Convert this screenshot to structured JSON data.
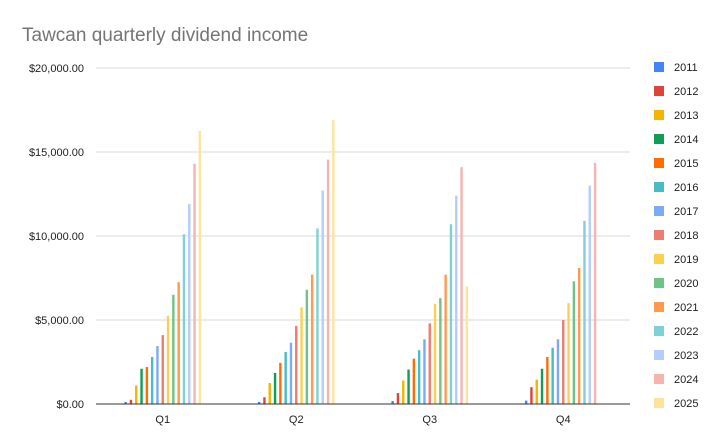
{
  "chart_data": {
    "type": "bar",
    "title": "Tawcan quarterly dividend income",
    "xlabel": "",
    "ylabel": "",
    "categories": [
      "Q1",
      "Q2",
      "Q3",
      "Q4"
    ],
    "ylim": [
      0,
      20000
    ],
    "yticks": [
      0,
      5000,
      10000,
      15000,
      20000
    ],
    "ytick_labels": [
      "$0.00",
      "$5,000.00",
      "$10,000.00",
      "$15,000.00",
      "$20,000.00"
    ],
    "grid": true,
    "legend_position": "right",
    "series": [
      {
        "name": "2011",
        "color": "#4285f4",
        "values": [
          120,
          120,
          180,
          200
        ]
      },
      {
        "name": "2012",
        "color": "#db4437",
        "values": [
          250,
          400,
          650,
          1000
        ]
      },
      {
        "name": "2013",
        "color": "#f4b400",
        "values": [
          1100,
          1250,
          1400,
          1450
        ]
      },
      {
        "name": "2014",
        "color": "#0f9d58",
        "values": [
          2100,
          1850,
          2050,
          2100
        ]
      },
      {
        "name": "2015",
        "color": "#ff6d00",
        "values": [
          2200,
          2450,
          2700,
          2800
        ]
      },
      {
        "name": "2016",
        "color": "#46bdc6",
        "values": [
          2800,
          3100,
          3200,
          3350
        ]
      },
      {
        "name": "2017",
        "color": "#7baaf7",
        "values": [
          3450,
          3650,
          3850,
          3850
        ]
      },
      {
        "name": "2018",
        "color": "#f07b72",
        "values": [
          4100,
          4650,
          4800,
          5000
        ]
      },
      {
        "name": "2019",
        "color": "#fcd04f",
        "values": [
          5250,
          5750,
          5950,
          6000
        ]
      },
      {
        "name": "2020",
        "color": "#71c287",
        "values": [
          6500,
          6800,
          6300,
          7300
        ]
      },
      {
        "name": "2021",
        "color": "#ff994d",
        "values": [
          7250,
          7700,
          7700,
          8100
        ]
      },
      {
        "name": "2022",
        "color": "#7ed1d7",
        "values": [
          10100,
          10450,
          10700,
          10900
        ]
      },
      {
        "name": "2023",
        "color": "#b3cefb",
        "values": [
          11900,
          12700,
          12400,
          13000
        ]
      },
      {
        "name": "2024",
        "color": "#f7b4ae",
        "values": [
          14300,
          14550,
          14100,
          14350
        ]
      },
      {
        "name": "2025",
        "color": "#fde49b",
        "values": [
          16250,
          16900,
          7000,
          null
        ]
      }
    ]
  }
}
